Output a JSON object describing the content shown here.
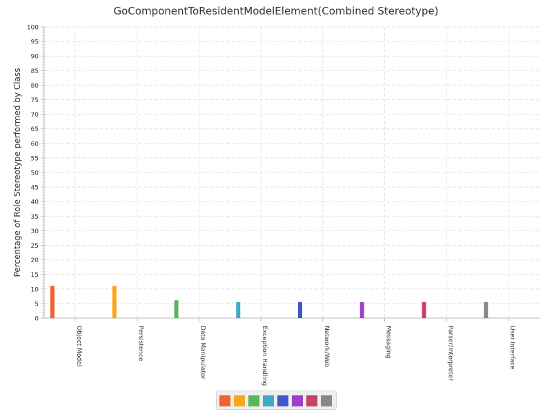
{
  "chart_data": {
    "type": "bar",
    "title": "GoComponentToResidentModelElement(Combined Stereotype)",
    "ylabel": "Percentage of Role Stereotype performed by Class",
    "xlabel": "",
    "ylim": [
      0,
      100
    ],
    "y_ticks": [
      "0",
      "5",
      "10",
      "15",
      "20",
      "25",
      "30",
      "35",
      "40",
      "45",
      "50",
      "55",
      "60",
      "65",
      "70",
      "75",
      "80",
      "85",
      "90",
      "95",
      "100"
    ],
    "grid": true,
    "legend": "bottom-center",
    "categories": [
      "Object Model",
      "Persistence",
      "Data Manipulator",
      "Exception Handling",
      "Network/Web",
      "Messaging",
      "Parser/Interpreter",
      "User Interface"
    ],
    "values": [
      11.1,
      11.1,
      6.1,
      5.5,
      5.5,
      5.5,
      5.5,
      5.5
    ],
    "colors": [
      "#f3622d",
      "#fba71b",
      "#57b757",
      "#41a9c9",
      "#4258c9",
      "#9a42c8",
      "#c84164",
      "#888888"
    ]
  }
}
